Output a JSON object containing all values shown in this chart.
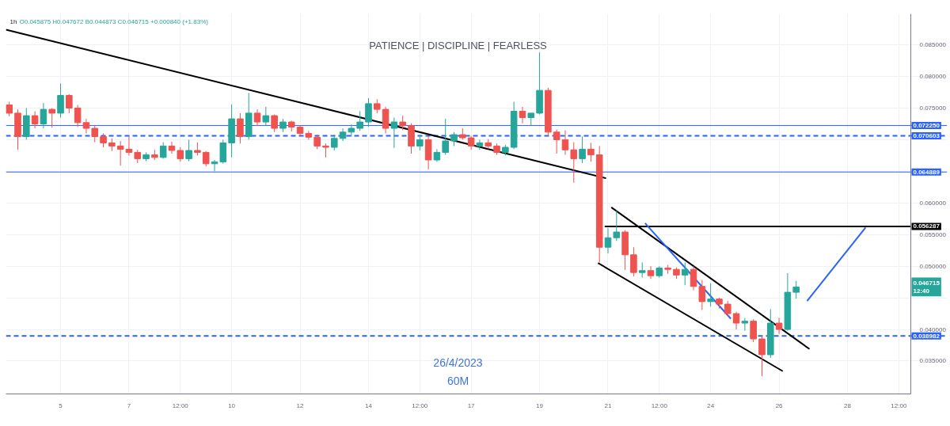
{
  "chart_data": {
    "type": "candlestick",
    "title": "PATIENCE | DISCIPLINE | FEARLESS",
    "annotations": [
      "1h",
      "O0.045875 H0.047672 B0.044873 C0.046715 +0.000840 (+1.83%)",
      "26/4/2023",
      "60M",
      {
        "text": "0.046715\n12:40",
        "y": 0.046715
      }
    ],
    "x": [
      "2023-04-03T12:00",
      "2023-04-03T18:00",
      "2023-04-04T00:00",
      "2023-04-04T06:00",
      "2023-04-04T12:00",
      "2023-04-04T18:00",
      "2023-04-05T00:00",
      "2023-04-05T06:00",
      "2023-04-05T12:00",
      "2023-04-05T18:00",
      "2023-04-06T00:00",
      "2023-04-06T06:00",
      "2023-04-06T12:00",
      "2023-04-06T18:00",
      "2023-04-07T00:00",
      "2023-04-07T06:00",
      "2023-04-07T12:00",
      "2023-04-07T18:00",
      "2023-04-08T00:00",
      "2023-04-08T06:00",
      "2023-04-08T12:00",
      "2023-04-08T18:00",
      "2023-04-09T00:00",
      "2023-04-09T06:00",
      "2023-04-09T12:00",
      "2023-04-09T18:00",
      "2023-04-10T00:00",
      "2023-04-10T06:00",
      "2023-04-10T12:00",
      "2023-04-10T18:00",
      "2023-04-11T00:00",
      "2023-04-11T06:00",
      "2023-04-11T12:00",
      "2023-04-11T18:00",
      "2023-04-12T00:00",
      "2023-04-12T06:00",
      "2023-04-12T12:00",
      "2023-04-12T18:00",
      "2023-04-13T00:00",
      "2023-04-13T06:00",
      "2023-04-13T12:00",
      "2023-04-13T18:00",
      "2023-04-14T00:00",
      "2023-04-14T06:00",
      "2023-04-14T12:00",
      "2023-04-14T18:00",
      "2023-04-15T00:00",
      "2023-04-15T06:00",
      "2023-04-15T12:00",
      "2023-04-15T18:00",
      "2023-04-16T00:00",
      "2023-04-16T06:00",
      "2023-04-16T12:00",
      "2023-04-16T18:00",
      "2023-04-17T00:00",
      "2023-04-17T06:00",
      "2023-04-17T12:00",
      "2023-04-17T18:00",
      "2023-04-18T00:00",
      "2023-04-18T06:00",
      "2023-04-18T12:00",
      "2023-04-18T18:00",
      "2023-04-19T00:00",
      "2023-04-19T06:00",
      "2023-04-19T12:00",
      "2023-04-19T18:00",
      "2023-04-20T00:00",
      "2023-04-20T06:00",
      "2023-04-20T12:00",
      "2023-04-20T18:00",
      "2023-04-21T00:00",
      "2023-04-21T06:00",
      "2023-04-21T12:00",
      "2023-04-21T18:00",
      "2023-04-22T00:00",
      "2023-04-22T06:00",
      "2023-04-22T12:00",
      "2023-04-22T18:00",
      "2023-04-23T00:00",
      "2023-04-23T06:00",
      "2023-04-23T12:00",
      "2023-04-23T18:00",
      "2023-04-24T00:00",
      "2023-04-24T06:00",
      "2023-04-24T12:00",
      "2023-04-24T18:00",
      "2023-04-25T00:00",
      "2023-04-25T06:00",
      "2023-04-25T12:00",
      "2023-04-25T18:00",
      "2023-04-26T00:00",
      "2023-04-26T06:00",
      "2023-04-26T12:00"
    ],
    "ohlc": [
      [
        0.0755,
        0.076,
        0.0737,
        0.0742
      ],
      [
        0.0742,
        0.0748,
        0.0684,
        0.0705
      ],
      [
        0.0705,
        0.075,
        0.07,
        0.0738
      ],
      [
        0.0738,
        0.0745,
        0.0718,
        0.0725
      ],
      [
        0.0725,
        0.0758,
        0.0718,
        0.0748
      ],
      [
        0.0748,
        0.075,
        0.0719,
        0.0742
      ],
      [
        0.0742,
        0.0789,
        0.0735,
        0.077
      ],
      [
        0.077,
        0.0772,
        0.0742,
        0.075
      ],
      [
        0.075,
        0.0755,
        0.072,
        0.0727
      ],
      [
        0.0727,
        0.0733,
        0.071,
        0.0718
      ],
      [
        0.0718,
        0.0722,
        0.0696,
        0.0705
      ],
      [
        0.0705,
        0.071,
        0.0688,
        0.0695
      ],
      [
        0.0695,
        0.0702,
        0.0682,
        0.069
      ],
      [
        0.069,
        0.0698,
        0.0659,
        0.0685
      ],
      [
        0.0685,
        0.0706,
        0.0675,
        0.068
      ],
      [
        0.068,
        0.0684,
        0.0663,
        0.067
      ],
      [
        0.067,
        0.068,
        0.0666,
        0.0676
      ],
      [
        0.0676,
        0.0684,
        0.0668,
        0.0672
      ],
      [
        0.0672,
        0.0696,
        0.067,
        0.069
      ],
      [
        0.069,
        0.0697,
        0.0678,
        0.0683
      ],
      [
        0.0683,
        0.0688,
        0.0665,
        0.067
      ],
      [
        0.067,
        0.07,
        0.0666,
        0.0683
      ],
      [
        0.0683,
        0.0696,
        0.0675,
        0.068
      ],
      [
        0.068,
        0.0682,
        0.0658,
        0.0662
      ],
      [
        0.0662,
        0.0668,
        0.065,
        0.0665
      ],
      [
        0.0665,
        0.07,
        0.0662,
        0.0695
      ],
      [
        0.0695,
        0.0756,
        0.0672,
        0.0733
      ],
      [
        0.0733,
        0.0742,
        0.0694,
        0.0705
      ],
      [
        0.0705,
        0.0774,
        0.07,
        0.0742
      ],
      [
        0.0742,
        0.0748,
        0.0722,
        0.0728
      ],
      [
        0.0728,
        0.0752,
        0.0722,
        0.0738
      ],
      [
        0.0738,
        0.074,
        0.0712,
        0.0718
      ],
      [
        0.0718,
        0.0733,
        0.0712,
        0.0728
      ],
      [
        0.0728,
        0.073,
        0.0713,
        0.072
      ],
      [
        0.072,
        0.0723,
        0.0706,
        0.071
      ],
      [
        0.071,
        0.0714,
        0.07,
        0.0704
      ],
      [
        0.0704,
        0.0708,
        0.0685,
        0.069
      ],
      [
        0.069,
        0.0694,
        0.0672,
        0.0688
      ],
      [
        0.0688,
        0.0708,
        0.0683,
        0.0702
      ],
      [
        0.0702,
        0.0718,
        0.0698,
        0.0712
      ],
      [
        0.0712,
        0.0724,
        0.0705,
        0.0718
      ],
      [
        0.0718,
        0.0745,
        0.0714,
        0.0728
      ],
      [
        0.0728,
        0.0766,
        0.072,
        0.0757
      ],
      [
        0.0757,
        0.0764,
        0.0742,
        0.0748
      ],
      [
        0.0748,
        0.0752,
        0.071,
        0.0718
      ],
      [
        0.0718,
        0.0735,
        0.0687,
        0.0728
      ],
      [
        0.0728,
        0.0738,
        0.0715,
        0.0722
      ],
      [
        0.0722,
        0.0726,
        0.0678,
        0.069
      ],
      [
        0.069,
        0.0707,
        0.0683,
        0.07
      ],
      [
        0.07,
        0.0706,
        0.0653,
        0.0668
      ],
      [
        0.0668,
        0.0685,
        0.0665,
        0.068
      ],
      [
        0.068,
        0.0733,
        0.0676,
        0.0698
      ],
      [
        0.0698,
        0.0712,
        0.069,
        0.0708
      ],
      [
        0.0708,
        0.0718,
        0.07,
        0.0703
      ],
      [
        0.0703,
        0.0706,
        0.0684,
        0.069
      ],
      [
        0.069,
        0.07,
        0.0684,
        0.0695
      ],
      [
        0.0695,
        0.0701,
        0.0686,
        0.069
      ],
      [
        0.069,
        0.0694,
        0.0676,
        0.068
      ],
      [
        0.068,
        0.0692,
        0.0675,
        0.0688
      ],
      [
        0.0688,
        0.076,
        0.0685,
        0.0745
      ],
      [
        0.0745,
        0.0752,
        0.0726,
        0.0735
      ],
      [
        0.0735,
        0.0742,
        0.0722,
        0.0742
      ],
      [
        0.0742,
        0.0838,
        0.074,
        0.0778
      ],
      [
        0.0778,
        0.0782,
        0.0705,
        0.0712
      ],
      [
        0.0712,
        0.0716,
        0.0678,
        0.07
      ],
      [
        0.07,
        0.0715,
        0.0676,
        0.0684
      ],
      [
        0.0684,
        0.0696,
        0.0632,
        0.067
      ],
      [
        0.067,
        0.0705,
        0.0663,
        0.0685
      ],
      [
        0.0685,
        0.0695,
        0.0665,
        0.0676
      ],
      [
        0.0676,
        0.069,
        0.0506,
        0.053
      ],
      [
        0.053,
        0.056,
        0.052,
        0.0545
      ],
      [
        0.0545,
        0.0588,
        0.054,
        0.0554
      ],
      [
        0.0554,
        0.0557,
        0.0494,
        0.0518
      ],
      [
        0.0518,
        0.053,
        0.0484,
        0.049
      ],
      [
        0.049,
        0.0506,
        0.0482,
        0.0493
      ],
      [
        0.0493,
        0.05,
        0.048,
        0.0485
      ],
      [
        0.0485,
        0.05,
        0.0482,
        0.0497
      ],
      [
        0.0497,
        0.0502,
        0.0488,
        0.0495
      ],
      [
        0.0495,
        0.0498,
        0.048,
        0.0486
      ],
      [
        0.0486,
        0.0506,
        0.047,
        0.0495
      ],
      [
        0.0495,
        0.05,
        0.0462,
        0.0468
      ],
      [
        0.0468,
        0.0478,
        0.0431,
        0.0444
      ],
      [
        0.0444,
        0.0473,
        0.0436,
        0.0448
      ],
      [
        0.0448,
        0.045,
        0.0433,
        0.044
      ],
      [
        0.044,
        0.0445,
        0.042,
        0.0425
      ],
      [
        0.0425,
        0.0428,
        0.04,
        0.041
      ],
      [
        0.041,
        0.0418,
        0.0398,
        0.0413
      ],
      [
        0.0413,
        0.0416,
        0.038,
        0.0385
      ],
      [
        0.0385,
        0.039,
        0.0326,
        0.036
      ],
      [
        0.036,
        0.0432,
        0.0355,
        0.041
      ],
      [
        0.041,
        0.0418,
        0.0393,
        0.04
      ],
      [
        0.04,
        0.0489,
        0.0398,
        0.045875
      ],
      [
        0.045875,
        0.047672,
        0.044873,
        0.046715
      ]
    ],
    "colors": [
      "#ef5350",
      "#ef5350",
      "#26a69a",
      "#ef5350",
      "#26a69a",
      "#ef5350",
      "#26a69a",
      "#ef5350",
      "#ef5350",
      "#ef5350",
      "#ef5350",
      "#ef5350",
      "#ef5350",
      "#ef5350",
      "#ef5350",
      "#ef5350",
      "#26a69a",
      "#ef5350",
      "#26a69a",
      "#ef5350",
      "#ef5350",
      "#26a69a",
      "#ef5350",
      "#ef5350",
      "#26a69a",
      "#26a69a",
      "#26a69a",
      "#ef5350",
      "#26a69a",
      "#ef5350",
      "#26a69a",
      "#ef5350",
      "#26a69a",
      "#ef5350",
      "#ef5350",
      "#ef5350",
      "#ef5350",
      "#ef5350",
      "#26a69a",
      "#26a69a",
      "#26a69a",
      "#26a69a",
      "#26a69a",
      "#ef5350",
      "#ef5350",
      "#26a69a",
      "#ef5350",
      "#ef5350",
      "#26a69a",
      "#ef5350",
      "#26a69a",
      "#26a69a",
      "#26a69a",
      "#ef5350",
      "#ef5350",
      "#26a69a",
      "#ef5350",
      "#ef5350",
      "#26a69a",
      "#26a69a",
      "#ef5350",
      "#26a69a",
      "#26a69a",
      "#ef5350",
      "#ef5350",
      "#ef5350",
      "#ef5350",
      "#26a69a",
      "#ef5350",
      "#ef5350",
      "#26a69a",
      "#26a69a",
      "#ef5350",
      "#ef5350",
      "#26a69a",
      "#ef5350",
      "#26a69a",
      "#ef5350",
      "#ef5350",
      "#26a69a",
      "#ef5350",
      "#ef5350",
      "#26a69a",
      "#ef5350",
      "#ef5350",
      "#ef5350",
      "#26a69a",
      "#ef5350",
      "#ef5350",
      "#26a69a",
      "#ef5350",
      "#26a69a",
      "#26a69a"
    ],
    "series": [
      {
        "type": "line",
        "color": "#000000",
        "x": [
          "2023-04-03T09:40",
          "2023-04-20T22:40"
        ],
        "values": [
          0.0874,
          0.0639
        ]
      },
      {
        "type": "line",
        "color": "#000000",
        "x": [
          "2023-04-21T02:20",
          "2023-04-26T21:20"
        ],
        "values": [
          0.0593,
          0.0369
        ]
      },
      {
        "type": "line",
        "color": "#000000",
        "x": [
          "2023-04-20T17:00",
          "2023-04-26T02:35"
        ],
        "values": [
          0.0505,
          0.0334
        ]
      },
      {
        "type": "line",
        "name": "0.056287",
        "color": "#000000",
        "x": [
          "2023-04-20T21:40",
          "2023-04-29T20:25"
        ],
        "values": [
          0.056287,
          0.056287
        ]
      },
      {
        "type": "line",
        "color": "#2962ff",
        "x": [
          "2023-04-22T02:00",
          "2023-04-24T14:10"
        ],
        "values": [
          0.0568,
          0.0417
        ]
      },
      {
        "type": "line",
        "color": "#2962ff",
        "x": [
          "2023-04-26T19:40",
          "2023-04-28T12:40"
        ],
        "values": [
          0.0445,
          0.0561
        ]
      }
    ],
    "ref_lines": [
      {
        "axis": "y",
        "value": 0.07225,
        "label": "0.072250",
        "color": "#2962ff"
      },
      {
        "axis": "y",
        "value": 0.070603,
        "label": "0.070603",
        "color": "#2962ff",
        "line_style": "dashed"
      },
      {
        "axis": "y",
        "value": 0.064889,
        "label": "0.064889",
        "color": "#2962ff"
      },
      {
        "axis": "y",
        "value": 0.038982,
        "label": "0.038982",
        "color": "#2962ff",
        "line_style": "dashed"
      }
    ],
    "xlim": [
      "2023-04-03T09:40",
      "2023-04-29T20:25"
    ],
    "xticks": [
      {
        "value": "2023-04-05",
        "label": "5"
      },
      {
        "value": "2023-04-07",
        "label": "7"
      },
      {
        "value": "2023-04-08T12:00",
        "label": "12:00"
      },
      {
        "value": "2023-04-10",
        "label": "10"
      },
      {
        "value": "2023-04-12",
        "label": "12"
      },
      {
        "value": "2023-04-14",
        "label": "14"
      },
      {
        "value": "2023-04-15T12:00",
        "label": "12:00"
      },
      {
        "value": "2023-04-17",
        "label": "17"
      },
      {
        "value": "2023-04-19",
        "label": "19"
      },
      {
        "value": "2023-04-21",
        "label": "21"
      },
      {
        "value": "2023-04-22T12:00",
        "label": "12:00"
      },
      {
        "value": "2023-04-24",
        "label": "24"
      },
      {
        "value": "2023-04-26",
        "label": "26"
      },
      {
        "value": "2023-04-28",
        "label": "28"
      },
      {
        "value": "2023-04-29T12:00",
        "label": "12:00"
      }
    ],
    "ylim": [
      0.0298,
      0.0899
    ],
    "yticks": [
      {
        "value": 0.035,
        "label": "0.035000"
      },
      {
        "value": 0.04,
        "label": "0.040000"
      },
      {
        "value": 0.045,
        "label": null
      },
      {
        "value": 0.05,
        "label": "0.050000"
      },
      {
        "value": 0.055,
        "label": "0.055000"
      },
      {
        "value": 0.06,
        "label": "0.060000"
      },
      {
        "value": 0.065,
        "label": null
      },
      {
        "value": 0.07,
        "label": null
      },
      {
        "value": 0.075,
        "label": "0.075000"
      },
      {
        "value": 0.08,
        "label": "0.080000"
      },
      {
        "value": 0.085,
        "label": "0.085000"
      }
    ],
    "grid": true
  }
}
